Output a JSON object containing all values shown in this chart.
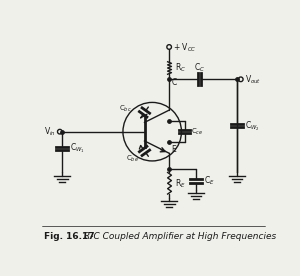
{
  "title": "Fig. 16.17",
  "subtitle": "R-C Coupled Amplifier at High Frequencies",
  "bg_color": "#f0f0eb",
  "line_color": "#1a1a1a",
  "fig_width": 3.0,
  "fig_height": 2.76,
  "dpi": 100,
  "labels": {
    "vcc": "+ V$_{CC}$",
    "rc": "R$_C$",
    "cc": "C$_C$",
    "cbc": "C$_{bc}$",
    "cce": "C$_{ce}$",
    "cbe": "C$_{be}$",
    "re": "R$_E$",
    "ce": "C$_E$",
    "cw1": "C$_{W_1}$",
    "cw2": "C$_{W_2}$",
    "vin": "V$_{in}$",
    "vout": "V$_{out}$",
    "C_node": "C",
    "E_node": "E"
  }
}
